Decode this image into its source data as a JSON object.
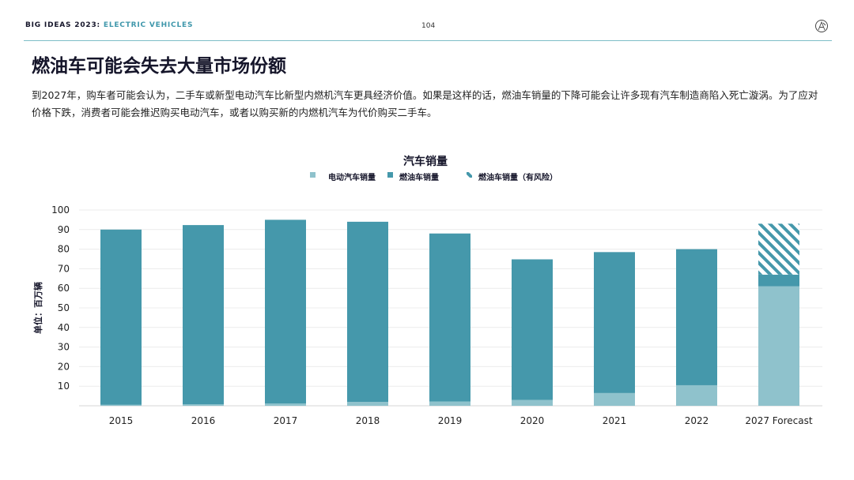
{
  "header": {
    "brand": "BIG IDEAS 2023:",
    "topic": "ELECTRIC VEHICLES",
    "page_number": "104",
    "logo_icon": "ark-logo-icon"
  },
  "title": "燃油车可能会失去大量市场份额",
  "description": "到2027年，购车者可能会认为，二手车或新型电动汽车比新型内燃机汽车更具经济价值。如果是这样的话，燃油车销量的下降可能会让许多现有汽车制造商陷入死亡漩涡。为了应对价格下跌，消费者可能会推迟购买电动汽车，或者以购买新的内燃机汽车为代价购买二手车。",
  "colors": {
    "ev": "#8fc2cc",
    "ice": "#4598ab",
    "at_risk": "#4598ab",
    "accent": "#3f97ab"
  },
  "chart_data": {
    "type": "bar",
    "stacked": true,
    "title": "汽车销量",
    "ylabel": "单位：百万辆",
    "xlabel": "",
    "ylim": [
      0,
      100
    ],
    "yticks": [
      10,
      20,
      30,
      40,
      50,
      60,
      70,
      80,
      90,
      100
    ],
    "grid": true,
    "legend_position": "top-center",
    "categories": [
      "2015",
      "2016",
      "2017",
      "2018",
      "2019",
      "2020",
      "2021",
      "2022",
      "2027 Forecast"
    ],
    "series": [
      {
        "name": "电动汽车销量",
        "style": "solid",
        "values": [
          0.5,
          0.8,
          1.2,
          2.0,
          2.2,
          3.0,
          6.5,
          10.5,
          61
        ]
      },
      {
        "name": "燃油车销量",
        "style": "solid",
        "values": [
          89.5,
          91.5,
          93.8,
          92.0,
          85.8,
          71.8,
          72.0,
          69.5,
          6
        ]
      },
      {
        "name": "燃油车销量（有风险）",
        "style": "hatched",
        "values": [
          0,
          0,
          0,
          0,
          0,
          0,
          0,
          0,
          26
        ]
      }
    ]
  }
}
